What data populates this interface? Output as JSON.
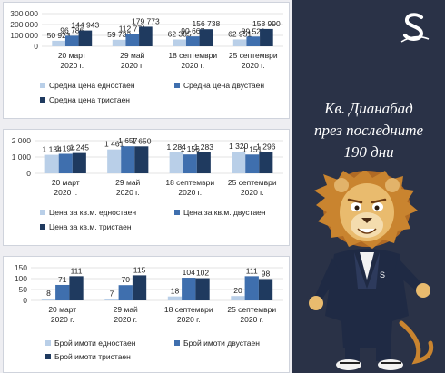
{
  "categories": [
    "20 март 2020 г.",
    "29 май 2020 г.",
    "18 септември 2020 г.",
    "25 септември 2020 г."
  ],
  "colors": {
    "s1": "#b9cfe8",
    "s2": "#3f6fae",
    "s3": "#1f3a5f",
    "right_bg": "#2a3247"
  },
  "headline": [
    "Кв. Дианабад",
    "през последните",
    "190 дни"
  ],
  "chart_data": [
    {
      "type": "bar",
      "categories": [
        "20 март 2020 г.",
        "29 май 2020 г.",
        "18 септември 2020 г.",
        "25 септември 2020 г."
      ],
      "series": [
        {
          "name": "Средна цена едностаен",
          "values": [
            50923,
            59732,
            62385,
            62951
          ],
          "labels": [
            "50 923",
            "59 732",
            "62 385",
            "62 951"
          ]
        },
        {
          "name": "Средна цена двустаен",
          "values": [
            96786,
            112771,
            90667,
            89523
          ],
          "labels": [
            "96 786",
            "112 771",
            "90 667",
            "89 523"
          ]
        },
        {
          "name": "Средна цена тристаен",
          "values": [
            144943,
            179773,
            156738,
            158990
          ],
          "labels": [
            "144 943",
            "179 773",
            "156 738",
            "158 990"
          ]
        }
      ],
      "ylim": [
        0,
        300000
      ],
      "yticks": [
        "0",
        "100 000",
        "200 000",
        "300 000"
      ],
      "yticks_values": [
        0,
        100000,
        200000,
        300000
      ],
      "legend_position": "bottom"
    },
    {
      "type": "bar",
      "categories": [
        "20 март 2020 г.",
        "29 май 2020 г.",
        "18 септември 2020 г.",
        "25 септември 2020 г."
      ],
      "series": [
        {
          "name": "Цена за кв.м. едностаен",
          "values": [
            1134,
            1461,
            1284,
            1320
          ],
          "labels": [
            "1 134",
            "1 461",
            "1 284",
            "1 320"
          ]
        },
        {
          "name": "Цена за кв.м. двустаен",
          "values": [
            1194,
            1657,
            1156,
            1151
          ],
          "labels": [
            "1 194",
            "1 657",
            "1 156",
            "1 151"
          ]
        },
        {
          "name": "Цена за кв.м. тристаен",
          "values": [
            1245,
            1650,
            1283,
            1296
          ],
          "labels": [
            "1 245",
            "1 650",
            "1 283",
            "1 296"
          ]
        }
      ],
      "ylim": [
        0,
        2000
      ],
      "yticks": [
        "0",
        "1 000",
        "2 000"
      ],
      "yticks_values": [
        0,
        1000,
        2000
      ],
      "legend_position": "bottom"
    },
    {
      "type": "bar",
      "categories": [
        "20 март 2020 г.",
        "29 май 2020 г.",
        "18 септември 2020 г.",
        "25 септември 2020 г."
      ],
      "series": [
        {
          "name": "Брой имоти едностаен",
          "values": [
            8,
            7,
            18,
            20
          ],
          "labels": [
            "8",
            "7",
            "18",
            "20"
          ]
        },
        {
          "name": "Брой имоти двустаен",
          "values": [
            71,
            70,
            104,
            111
          ],
          "labels": [
            "71",
            "70",
            "104",
            "111"
          ]
        },
        {
          "name": "Брой имоти тристаен",
          "values": [
            111,
            115,
            102,
            98
          ],
          "labels": [
            "111",
            "115",
            "102",
            "98"
          ]
        }
      ],
      "ylim": [
        0,
        150
      ],
      "yticks": [
        "0",
        "50",
        "100",
        "150"
      ],
      "yticks_values": [
        0,
        50,
        100,
        150
      ],
      "legend_position": "bottom"
    }
  ]
}
